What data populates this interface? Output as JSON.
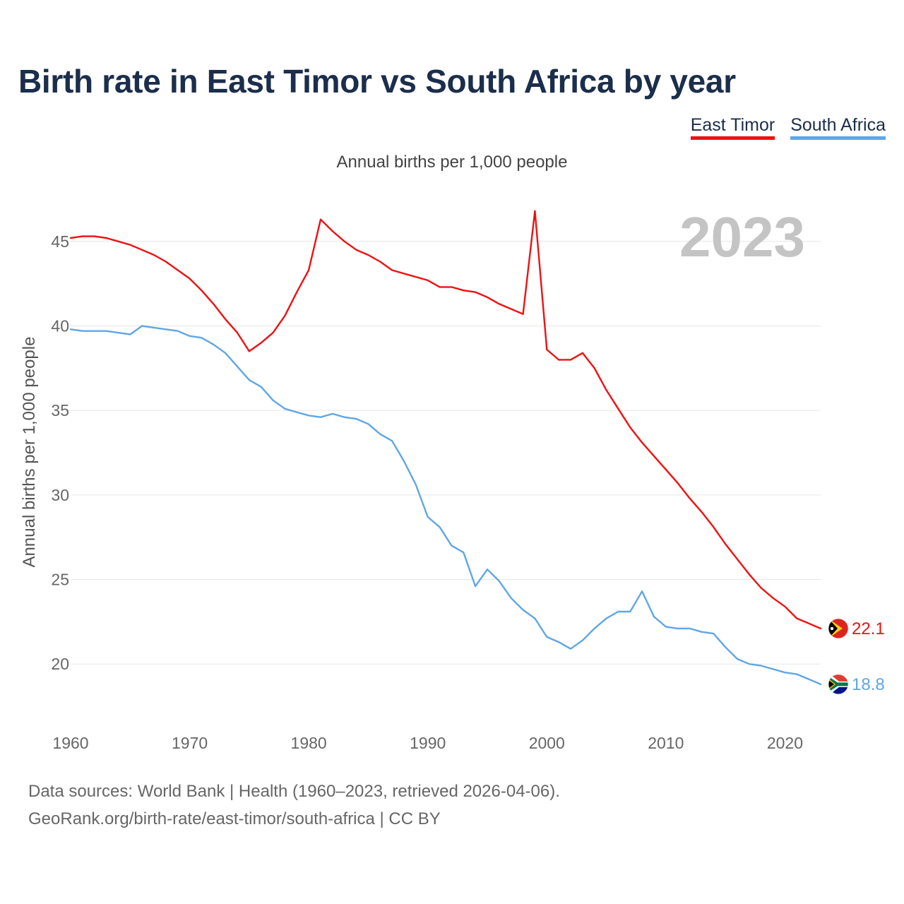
{
  "chart_data": {
    "type": "line",
    "title": "Birth rate in East Timor vs South Africa by year",
    "subtitle": "Annual births per 1,000 people",
    "ylabel": "Annual births per 1,000 people",
    "xlabel": "",
    "year_label": "2023",
    "xlim": [
      1960,
      2023
    ],
    "ylim": [
      17,
      48
    ],
    "x_ticks": [
      1960,
      1970,
      1980,
      1990,
      2000,
      2010,
      2020
    ],
    "y_ticks": [
      20,
      25,
      30,
      35,
      40,
      45
    ],
    "grid": true,
    "x": [
      1960,
      1961,
      1962,
      1963,
      1964,
      1965,
      1966,
      1967,
      1968,
      1969,
      1970,
      1971,
      1972,
      1973,
      1974,
      1975,
      1976,
      1977,
      1978,
      1979,
      1980,
      1981,
      1982,
      1983,
      1984,
      1985,
      1986,
      1987,
      1988,
      1989,
      1990,
      1991,
      1992,
      1993,
      1994,
      1995,
      1996,
      1997,
      1998,
      1999,
      2000,
      2001,
      2002,
      2003,
      2004,
      2005,
      2006,
      2007,
      2008,
      2009,
      2010,
      2011,
      2012,
      2013,
      2014,
      2015,
      2016,
      2017,
      2018,
      2019,
      2020,
      2021,
      2022,
      2023
    ],
    "series": [
      {
        "name": "East Timor",
        "color": "#ee1111",
        "end_label": "22.1",
        "flag_icon": "east-timor-flag-icon",
        "values": [
          45.2,
          45.3,
          45.3,
          45.2,
          45.0,
          44.8,
          44.5,
          44.2,
          43.8,
          43.3,
          42.8,
          42.1,
          41.3,
          40.4,
          39.6,
          38.5,
          39.0,
          39.6,
          40.6,
          42.0,
          43.3,
          46.3,
          45.6,
          45.0,
          44.5,
          44.2,
          43.8,
          43.3,
          43.1,
          42.9,
          42.7,
          42.3,
          42.3,
          42.1,
          42.0,
          41.7,
          41.3,
          41.0,
          40.7,
          46.8,
          38.6,
          38.0,
          38.0,
          38.4,
          37.5,
          36.2,
          35.1,
          34.0,
          33.1,
          32.3,
          31.5,
          30.7,
          29.8,
          29.0,
          28.1,
          27.1,
          26.2,
          25.3,
          24.5,
          23.9,
          23.4,
          22.7,
          22.4,
          22.1
        ]
      },
      {
        "name": "South Africa",
        "color": "#5fa6e6",
        "end_label": "18.8",
        "flag_icon": "south-africa-flag-icon",
        "values": [
          39.8,
          39.7,
          39.7,
          39.7,
          39.6,
          39.5,
          40.0,
          39.9,
          39.8,
          39.7,
          39.4,
          39.3,
          38.9,
          38.4,
          37.6,
          36.8,
          36.4,
          35.6,
          35.1,
          34.9,
          34.7,
          34.6,
          34.8,
          34.6,
          34.5,
          34.2,
          33.6,
          33.2,
          32.0,
          30.6,
          28.7,
          28.1,
          27.0,
          26.6,
          24.6,
          25.6,
          24.9,
          23.9,
          23.2,
          22.7,
          21.6,
          21.3,
          20.9,
          21.4,
          22.1,
          22.7,
          23.1,
          23.1,
          24.3,
          22.8,
          22.2,
          22.1,
          22.1,
          21.9,
          21.8,
          21.0,
          20.3,
          20.0,
          19.9,
          19.7,
          19.5,
          19.4,
          19.1,
          18.8
        ]
      }
    ]
  },
  "legend": {
    "items": [
      "East Timor",
      "South Africa"
    ]
  },
  "sources": {
    "line1": "Data sources: World Bank | Health (1960–2023, retrieved 2026-04-06).",
    "line2": "GeoRank.org/birth-rate/east-timor/south-africa | CC BY"
  }
}
